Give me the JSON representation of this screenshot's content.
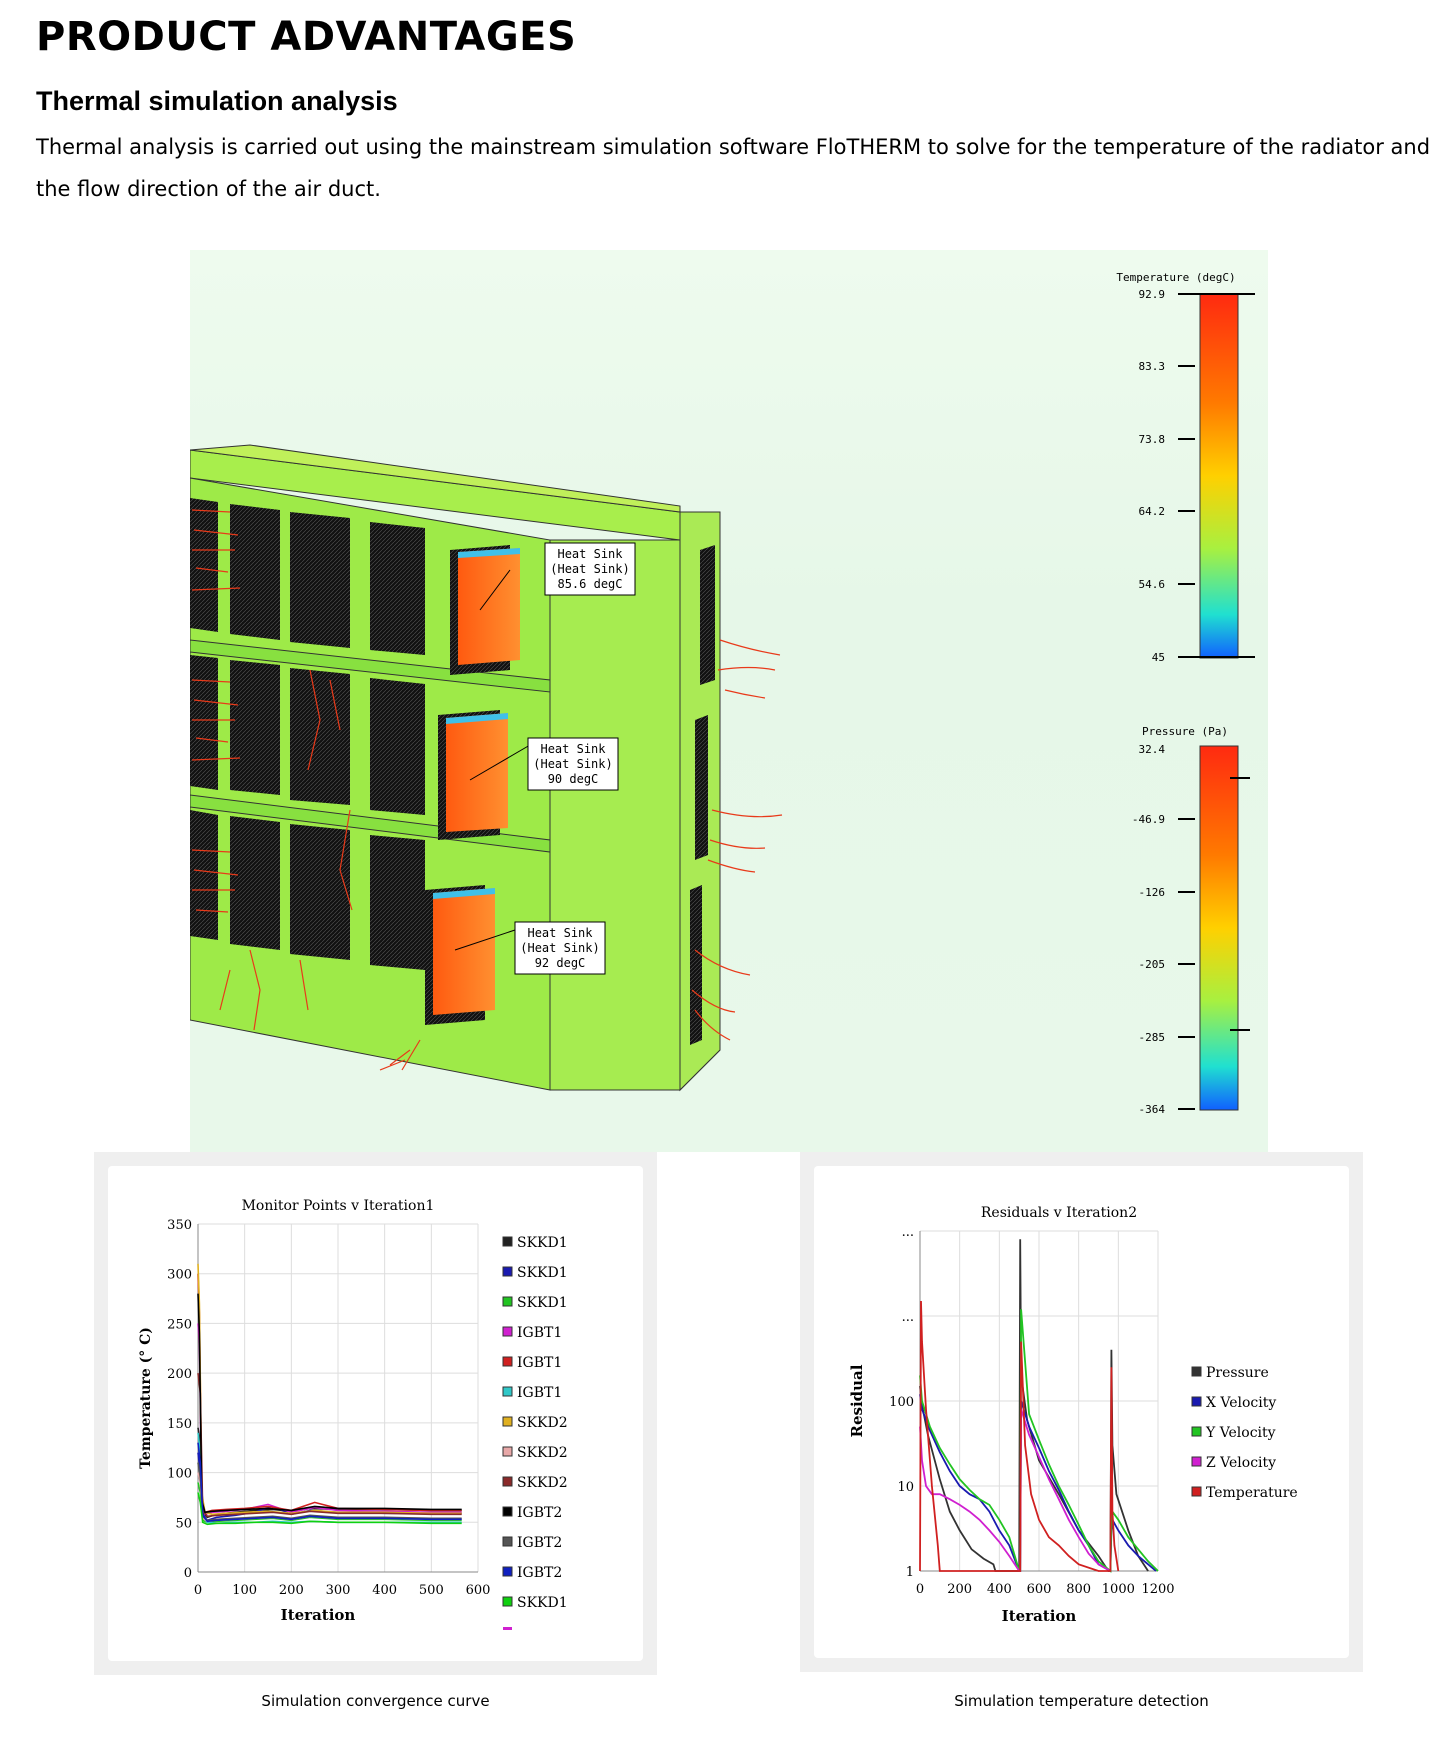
{
  "heading": "PRODUCT ADVANTAGES",
  "subheading": "Thermal simulation analysis",
  "paragraph": "Thermal analysis is carried out using the mainstream simulation software FloTHERM to solve for the temperature of the radiator and the flow direction of the air duct.",
  "simulation": {
    "temperature_scale": {
      "title": "Temperature (degC)",
      "ticks": [
        "92.9",
        "83.3",
        "73.8",
        "64.2",
        "54.6",
        "45"
      ]
    },
    "pressure_scale": {
      "title": "Pressure (Pa)",
      "ticks": [
        "32.4",
        "-46.9",
        "-126",
        "-205",
        "-285",
        "-364"
      ]
    },
    "labels": [
      {
        "line1": "Heat Sink",
        "line2": "(Heat Sink)",
        "line3": "85.6 degC"
      },
      {
        "line1": "Heat Sink",
        "line2": "(Heat Sink)",
        "line3": "90 degC"
      },
      {
        "line1": "Heat Sink",
        "line2": "(Heat Sink)",
        "line3": "92 degC"
      }
    ]
  },
  "chart_data": [
    {
      "type": "line",
      "title": "Monitor Points v Iteration1",
      "xlabel": "Iteration",
      "ylabel": "Temperature (° C)",
      "xlim": [
        0,
        600
      ],
      "ylim": [
        0,
        350
      ],
      "x_ticks": [
        "0",
        "100",
        "200",
        "300",
        "400",
        "500",
        "600"
      ],
      "y_ticks": [
        "0",
        "50",
        "100",
        "150",
        "200",
        "250",
        "300",
        "350"
      ],
      "legend": [
        "SKKD1",
        "SKKD1",
        "SKKD1",
        "IGBT1",
        "IGBT1",
        "IGBT1",
        "SKKD2",
        "SKKD2",
        "SKKD2",
        "IGBT2",
        "IGBT2",
        "IGBT2",
        "SKKD1"
      ],
      "colors": [
        "#222222",
        "#1a1ab0",
        "#22c422",
        "#d020d0",
        "#d02020",
        "#30c8c8",
        "#e0b020",
        "#e8a8a8",
        "#8a2a2a",
        "#000000",
        "#555555",
        "#1020c0",
        "#10d010"
      ],
      "series": [
        {
          "name": "SKKD1",
          "x": [
            0,
            5,
            10,
            20,
            40,
            80,
            120,
            160,
            200,
            240,
            300,
            400,
            500,
            565
          ],
          "y": [
            145,
            130,
            60,
            55,
            58,
            60,
            62,
            63,
            61,
            64,
            63,
            63,
            62,
            62
          ]
        },
        {
          "name": "SKKD1",
          "x": [
            0,
            5,
            10,
            20,
            40,
            80,
            120,
            160,
            200,
            240,
            300,
            400,
            500,
            565
          ],
          "y": [
            120,
            100,
            58,
            52,
            55,
            57,
            60,
            66,
            58,
            62,
            60,
            59,
            59,
            59
          ]
        },
        {
          "name": "SKKD1",
          "x": [
            0,
            5,
            10,
            20,
            40,
            80,
            120,
            160,
            200,
            240,
            300,
            400,
            500,
            565
          ],
          "y": [
            90,
            80,
            52,
            50,
            51,
            52,
            53,
            54,
            52,
            55,
            53,
            53,
            52,
            52
          ]
        },
        {
          "name": "IGBT1",
          "x": [
            0,
            3,
            8,
            15,
            30,
            60,
            100,
            150,
            200,
            250,
            300,
            400,
            500,
            565
          ],
          "y": [
            250,
            230,
            70,
            58,
            60,
            61,
            63,
            68,
            60,
            65,
            62,
            61,
            60,
            60
          ]
        },
        {
          "name": "IGBT1",
          "x": [
            0,
            3,
            8,
            15,
            30,
            60,
            100,
            150,
            200,
            250,
            300,
            400,
            500,
            565
          ],
          "y": [
            300,
            260,
            75,
            60,
            62,
            63,
            64,
            66,
            62,
            70,
            64,
            63,
            62,
            62
          ]
        },
        {
          "name": "IGBT1",
          "x": [
            0,
            5,
            10,
            20,
            40,
            80,
            120,
            160,
            200,
            240,
            300,
            400,
            500,
            565
          ],
          "y": [
            140,
            120,
            55,
            50,
            49,
            50,
            50,
            51,
            50,
            51,
            50,
            50,
            50,
            50
          ]
        },
        {
          "name": "SKKD2",
          "x": [
            0,
            3,
            8,
            15,
            30,
            60,
            100,
            150,
            200,
            250,
            300,
            400,
            500,
            565
          ],
          "y": [
            310,
            270,
            80,
            60,
            58,
            59,
            60,
            61,
            59,
            62,
            60,
            60,
            59,
            59
          ]
        },
        {
          "name": "SKKD2",
          "x": [
            0,
            5,
            10,
            20,
            40,
            80,
            120,
            160,
            200,
            240,
            300,
            400,
            500,
            565
          ],
          "y": [
            100,
            90,
            54,
            51,
            52,
            53,
            54,
            55,
            53,
            56,
            54,
            54,
            53,
            53
          ]
        },
        {
          "name": "SKKD2",
          "x": [
            0,
            5,
            10,
            20,
            40,
            80,
            120,
            160,
            200,
            240,
            300,
            400,
            500,
            565
          ],
          "y": [
            200,
            180,
            62,
            56,
            57,
            58,
            59,
            60,
            58,
            61,
            59,
            59,
            58,
            58
          ]
        },
        {
          "name": "IGBT2",
          "x": [
            0,
            3,
            8,
            15,
            30,
            60,
            100,
            150,
            200,
            250,
            300,
            400,
            500,
            565
          ],
          "y": [
            280,
            240,
            72,
            60,
            61,
            62,
            63,
            64,
            62,
            66,
            64,
            64,
            63,
            63
          ]
        },
        {
          "name": "IGBT2",
          "x": [
            0,
            5,
            10,
            20,
            40,
            80,
            120,
            160,
            200,
            240,
            300,
            400,
            500,
            565
          ],
          "y": [
            110,
            95,
            56,
            52,
            53,
            54,
            55,
            56,
            54,
            57,
            55,
            55,
            54,
            54
          ]
        },
        {
          "name": "IGBT2",
          "x": [
            0,
            5,
            10,
            20,
            40,
            80,
            120,
            160,
            200,
            240,
            300,
            400,
            500,
            565
          ],
          "y": [
            130,
            110,
            57,
            51,
            52,
            53,
            54,
            55,
            53,
            56,
            54,
            54,
            53,
            53
          ]
        },
        {
          "name": "SKKD1",
          "x": [
            0,
            5,
            10,
            20,
            40,
            80,
            120,
            160,
            200,
            240,
            300,
            400,
            500,
            565
          ],
          "y": [
            80,
            70,
            50,
            48,
            49,
            49,
            50,
            50,
            49,
            51,
            50,
            50,
            49,
            49
          ]
        }
      ]
    },
    {
      "type": "line",
      "title": "Residuals v Iteration2",
      "xlabel": "Iteration",
      "ylabel": "Residual",
      "log_y": true,
      "xlim": [
        0,
        1200
      ],
      "ylim": [
        1,
        10000
      ],
      "x_ticks": [
        "0",
        "200",
        "400",
        "600",
        "800",
        "1000",
        "1200"
      ],
      "y_ticks": [
        "1",
        "10",
        "100",
        "...",
        "..."
      ],
      "legend": [
        "Pressure",
        "X Velocity",
        "Y Velocity",
        "Z Velocity",
        "Temperature"
      ],
      "colors": [
        "#333333",
        "#1a1ab0",
        "#22c422",
        "#d020d0",
        "#d02020"
      ],
      "series": [
        {
          "name": "Pressure",
          "x": [
            0,
            10,
            40,
            100,
            150,
            200,
            260,
            320,
            370,
            380,
            500,
            505,
            510,
            540,
            600,
            700,
            800,
            900,
            950,
            960,
            965,
            970,
            990,
            1050,
            1100,
            1150
          ],
          "y": [
            150,
            90,
            40,
            12,
            5,
            3,
            1.8,
            1.4,
            1.2,
            1,
            1,
            8000,
            200,
            60,
            20,
            8,
            3,
            1.5,
            1,
            1,
            400,
            30,
            8,
            3,
            1.5,
            1
          ]
        },
        {
          "name": "X Velocity",
          "x": [
            0,
            10,
            50,
            100,
            150,
            200,
            250,
            300,
            350,
            400,
            450,
            500,
            505,
            510,
            550,
            600,
            650,
            700,
            750,
            800,
            850,
            900,
            960,
            965,
            970,
            1000,
            1050,
            1100,
            1150,
            1190
          ],
          "y": [
            120,
            80,
            45,
            25,
            15,
            10,
            8,
            7,
            5,
            3,
            2,
            1,
            1,
            100,
            50,
            28,
            15,
            9,
            5,
            3,
            2,
            1.2,
            1,
            3,
            4,
            3,
            2,
            1.5,
            1.2,
            1
          ]
        },
        {
          "name": "Y Velocity",
          "x": [
            0,
            10,
            50,
            100,
            150,
            200,
            250,
            300,
            350,
            400,
            450,
            500,
            505,
            510,
            550,
            600,
            650,
            700,
            750,
            800,
            850,
            900,
            960,
            965,
            970,
            1000,
            1050,
            1100,
            1150,
            1200
          ],
          "y": [
            200,
            100,
            50,
            28,
            18,
            12,
            9,
            7,
            6,
            4,
            2.5,
            1,
            1,
            1200,
            70,
            35,
            18,
            10,
            6,
            3.5,
            2,
            1.3,
            1,
            4,
            5,
            4,
            2.5,
            1.8,
            1.3,
            1
          ]
        },
        {
          "name": "Z Velocity",
          "x": [
            0,
            10,
            30,
            60,
            100,
            150,
            200,
            250,
            300,
            350,
            400,
            450,
            500,
            505,
            510,
            550,
            600,
            650,
            700,
            750,
            800,
            850,
            900,
            960
          ],
          "y": [
            50,
            20,
            10,
            8,
            8,
            7,
            6,
            5,
            4,
            3,
            2.2,
            1.5,
            1,
            1,
            80,
            40,
            22,
            12,
            7,
            4,
            2.5,
            1.6,
            1.2,
            1
          ]
        },
        {
          "name": "Temperature",
          "x": [
            0,
            5,
            10,
            30,
            60,
            90,
            100,
            500,
            505,
            510,
            530,
            560,
            600,
            650,
            700,
            750,
            800,
            900,
            960,
            965,
            970,
            980,
            1000
          ],
          "y": [
            1,
            1500,
            500,
            80,
            10,
            2,
            1,
            1,
            1,
            500,
            30,
            8,
            4,
            2.5,
            2,
            1.5,
            1.2,
            1,
            1,
            250,
            5,
            2,
            1
          ]
        }
      ]
    }
  ],
  "captions": {
    "left": "Simulation convergence curve",
    "right": "Simulation temperature detection"
  }
}
